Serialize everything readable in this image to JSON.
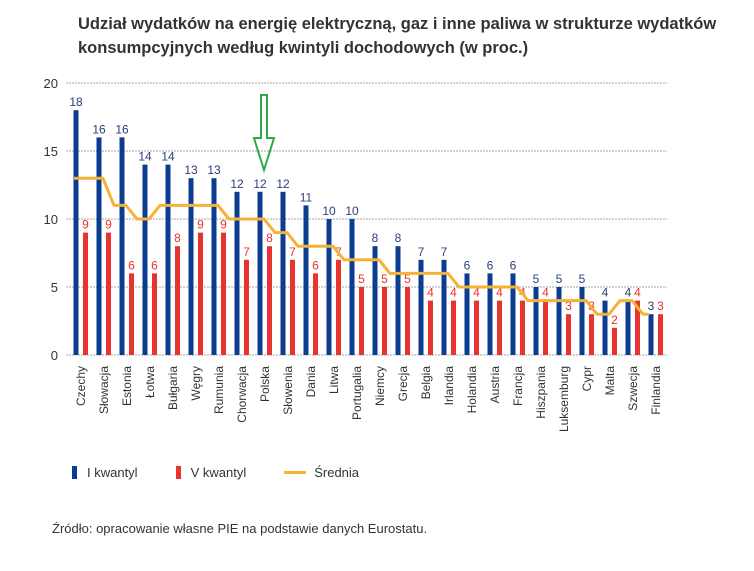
{
  "chart_data": {
    "type": "bar",
    "title": "Udział wydatków na energię elektryczną, gaz i inne paliwa w strukturze wydatków konsumpcyjnych według kwintyli dochodowych (w proc.)",
    "categories": [
      "Czechy",
      "Słowacja",
      "Estonia",
      "Łotwa",
      "Bułgaria",
      "Węgry",
      "Rumunia",
      "Chorwacja",
      "Polska",
      "Słowenia",
      "Dania",
      "Litwa",
      "Portugalia",
      "Niemcy",
      "Grecja",
      "Belgia",
      "Irlandia",
      "Holandia",
      "Austria",
      "Francja",
      "Hiszpania",
      "Luksemburg",
      "Cypr",
      "Malta",
      "Szwecja",
      "Finlandia"
    ],
    "series": [
      {
        "name": "I kwantyl",
        "type": "bar",
        "color": "#0a3d91",
        "values": [
          18,
          16,
          16,
          14,
          14,
          13,
          13,
          12,
          12,
          12,
          11,
          10,
          10,
          8,
          8,
          7,
          7,
          6,
          6,
          6,
          5,
          5,
          5,
          4,
          4,
          3
        ]
      },
      {
        "name": "V kwantyl",
        "type": "bar",
        "color": "#e8332e",
        "values": [
          9,
          9,
          6,
          6,
          8,
          9,
          9,
          7,
          8,
          7,
          6,
          7,
          5,
          5,
          5,
          4,
          4,
          4,
          4,
          4,
          4,
          3,
          3,
          2,
          4,
          3
        ]
      },
      {
        "name": "Średnia",
        "type": "line",
        "color": "#f5b335",
        "values": [
          13,
          13,
          11,
          10,
          11,
          11,
          11,
          10,
          10,
          9,
          8,
          8,
          7,
          7,
          6,
          6,
          6,
          5,
          5,
          5,
          4,
          4,
          4,
          3,
          4,
          3
        ]
      }
    ],
    "ylim": [
      0,
      20
    ],
    "yticks": [
      0,
      5,
      10,
      15,
      20
    ],
    "grid": true,
    "legend": "bottom-left",
    "annotation": "green arrow pointing at Polska"
  },
  "source": "Źródło: opracowanie własne PIE na podstawie danych Eurostatu."
}
